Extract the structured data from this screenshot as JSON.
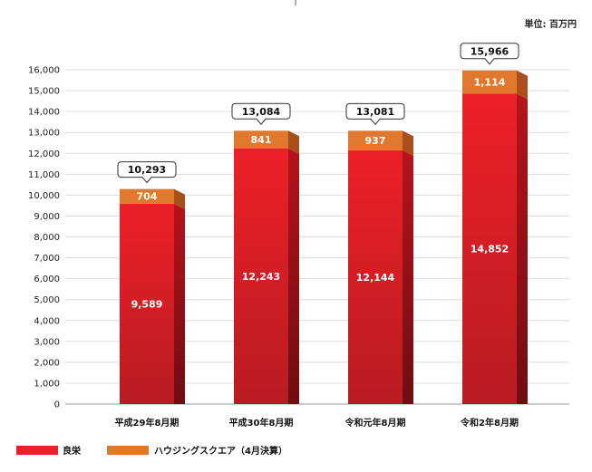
{
  "chart_data": {
    "type": "bar",
    "stacked": true,
    "unit_label": "単位: 百万円",
    "categories": [
      "平成29年8月期",
      "平成30年8月期",
      "令和元年8月期",
      "令和2年8月期"
    ],
    "series": [
      {
        "name": "良栄",
        "values": [
          9589,
          12243,
          12144,
          14852
        ],
        "labels": [
          "9,589",
          "12,243",
          "12,144",
          "14,852"
        ],
        "color": "#e8212b"
      },
      {
        "name": "ハウジングスクエア（4月決算）",
        "values": [
          704,
          841,
          937,
          1114
        ],
        "labels": [
          "704",
          "841",
          "937",
          "1,114"
        ],
        "color": "#e0792e"
      }
    ],
    "totals": [
      10293,
      13084,
      13081,
      15966
    ],
    "total_labels": [
      "10,293",
      "13,084",
      "13,081",
      "15,966"
    ],
    "ylim": [
      0,
      16000
    ],
    "yticks": [
      0,
      1000,
      2000,
      3000,
      4000,
      5000,
      6000,
      7000,
      8000,
      9000,
      10000,
      11000,
      12000,
      13000,
      14000,
      15000,
      16000
    ],
    "ytick_labels": [
      "0",
      "1,000",
      "2,000",
      "3,000",
      "4,000",
      "5,000",
      "6,000",
      "7,000",
      "8,000",
      "9,000",
      "10,000",
      "11,000",
      "12,000",
      "13,000",
      "14,000",
      "15,000",
      "16,000"
    ],
    "grid": true,
    "legend_position": "bottom-left"
  }
}
